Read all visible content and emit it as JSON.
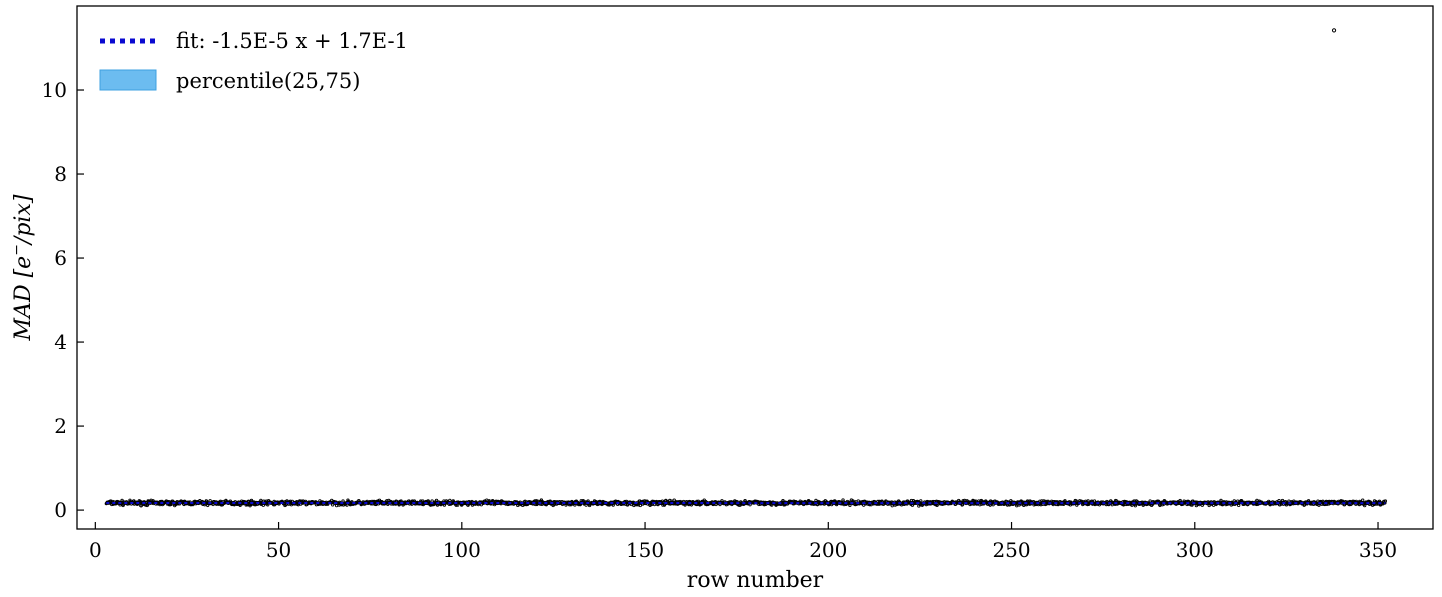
{
  "chart_data": {
    "type": "scatter",
    "xlabel": "row number",
    "ylabel_prefix": "MAD [",
    "ylabel_e": "e",
    "ylabel_minus": "−",
    "ylabel_suffix": "/pix]",
    "xlim": [
      -5,
      365
    ],
    "ylim": [
      -0.45,
      12.0
    ],
    "xticks": [
      0,
      50,
      100,
      150,
      200,
      250,
      300,
      350
    ],
    "yticks": [
      0,
      2,
      4,
      6,
      8,
      10
    ],
    "grid": false,
    "legend_position": "top-left",
    "legend": [
      {
        "label": "fit: -1.5E-5 x + 1.7E-1",
        "kind": "dotted-line",
        "color": "#0a0ad0"
      },
      {
        "label": "percentile(25,75)",
        "kind": "patch",
        "color": "#6cbcf0"
      }
    ],
    "fit": {
      "slope": -1.5e-05,
      "intercept": 0.17
    },
    "points": {
      "x_range": [
        3,
        352
      ],
      "typical_value": 0.17,
      "spread": 0.04,
      "outliers": [
        {
          "x": 338,
          "y": 11.42
        }
      ],
      "color": "#000000"
    },
    "percentile_band": {
      "low": 0.15,
      "high": 0.19,
      "color": "#6cbcf0"
    }
  }
}
